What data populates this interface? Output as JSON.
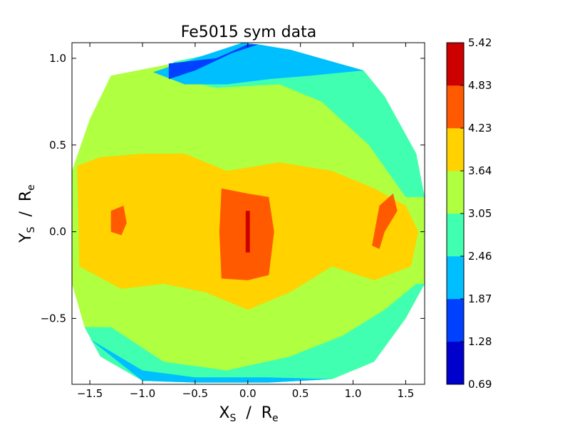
{
  "chart_data": {
    "type": "heatmap",
    "title": "Fe5015 sym data",
    "xlabel": {
      "main": "X",
      "sub": "S",
      "sep": "  /  R",
      "unit_sub": "e"
    },
    "ylabel": {
      "main": "Y",
      "sub": "S",
      "sep": "  /  R",
      "unit_sub": "e"
    },
    "xlim": [
      -1.67,
      1.68
    ],
    "ylim": [
      -0.88,
      1.09
    ],
    "xticks": [
      -1.5,
      -1.0,
      -0.5,
      0.0,
      0.5,
      1.0,
      1.5
    ],
    "xtick_labels": [
      "−1.5",
      "−1.0",
      "−0.5",
      "0.0",
      "0.5",
      "1.0",
      "1.5"
    ],
    "yticks": [
      -0.5,
      0.0,
      0.5,
      1.0
    ],
    "ytick_labels": [
      "−0.5",
      "0.0",
      "0.5",
      "1.0"
    ],
    "colorbar": {
      "levels": [
        0.69,
        1.28,
        1.87,
        2.46,
        3.05,
        3.64,
        4.23,
        4.83,
        5.42
      ],
      "level_labels": [
        "0.69",
        "1.28",
        "1.87",
        "2.46",
        "3.05",
        "3.64",
        "4.23",
        "4.83",
        "5.42"
      ],
      "colors": [
        "#0000cd",
        "#0040ff",
        "#00bfff",
        "#40ffb0",
        "#b0ff40",
        "#ffd200",
        "#ff5a00",
        "#cd0000"
      ]
    },
    "data_region": {
      "boundary_xy": [
        [
          -0.05,
          1.09
        ],
        [
          0.05,
          1.08
        ],
        [
          0.4,
          1.05
        ],
        [
          1.1,
          0.93
        ],
        [
          1.3,
          0.78
        ],
        [
          1.6,
          0.45
        ],
        [
          1.68,
          0.2
        ],
        [
          1.68,
          -0.3
        ],
        [
          1.5,
          -0.5
        ],
        [
          1.2,
          -0.75
        ],
        [
          0.8,
          -0.85
        ],
        [
          0.2,
          -0.87
        ],
        [
          -0.5,
          -0.87
        ],
        [
          -1.0,
          -0.86
        ],
        [
          -1.4,
          -0.72
        ],
        [
          -1.55,
          -0.55
        ],
        [
          -1.67,
          -0.3
        ],
        [
          -1.67,
          0.35
        ],
        [
          -1.5,
          0.65
        ],
        [
          -1.3,
          0.9
        ],
        [
          -0.8,
          0.96
        ],
        [
          -0.3,
          1.03
        ]
      ],
      "fill_level_index": 4
    },
    "regions": [
      {
        "level_index": 3,
        "polygon": [
          [
            -0.05,
            1.09
          ],
          [
            0.4,
            1.05
          ],
          [
            1.1,
            0.93
          ],
          [
            1.3,
            0.78
          ],
          [
            1.6,
            0.45
          ],
          [
            1.68,
            0.2
          ],
          [
            1.5,
            0.2
          ],
          [
            1.15,
            0.5
          ],
          [
            0.7,
            0.75
          ],
          [
            0.3,
            0.85
          ],
          [
            -0.3,
            0.83
          ],
          [
            -0.8,
            0.9
          ],
          [
            -0.7,
            0.98
          ],
          [
            -0.3,
            1.03
          ]
        ]
      },
      {
        "level_index": 3,
        "polygon": [
          [
            1.68,
            -0.3
          ],
          [
            1.5,
            -0.5
          ],
          [
            1.2,
            -0.75
          ],
          [
            0.8,
            -0.85
          ],
          [
            0.2,
            -0.87
          ],
          [
            -0.5,
            -0.87
          ],
          [
            -1.0,
            -0.86
          ],
          [
            -1.4,
            -0.72
          ],
          [
            -1.55,
            -0.55
          ],
          [
            -1.3,
            -0.55
          ],
          [
            -0.8,
            -0.75
          ],
          [
            -0.2,
            -0.8
          ],
          [
            0.4,
            -0.72
          ],
          [
            0.9,
            -0.6
          ],
          [
            1.3,
            -0.45
          ],
          [
            1.6,
            -0.3
          ]
        ]
      },
      {
        "level_index": 2,
        "polygon": [
          [
            -0.05,
            1.09
          ],
          [
            0.1,
            1.08
          ],
          [
            0.4,
            1.05
          ],
          [
            1.1,
            0.93
          ],
          [
            0.6,
            0.9
          ],
          [
            0.2,
            0.88
          ],
          [
            -0.2,
            0.85
          ],
          [
            -0.6,
            0.85
          ],
          [
            -0.9,
            0.92
          ],
          [
            -0.5,
            1.0
          ]
        ]
      },
      {
        "level_index": 2,
        "polygon": [
          [
            -1.5,
            -0.62
          ],
          [
            -1.0,
            -0.86
          ],
          [
            -0.5,
            -0.87
          ],
          [
            0.2,
            -0.87
          ],
          [
            0.8,
            -0.85
          ],
          [
            0.2,
            -0.84
          ],
          [
            -0.5,
            -0.84
          ],
          [
            -1.0,
            -0.8
          ]
        ]
      },
      {
        "level_index": 1,
        "polygon": [
          [
            -0.75,
            0.97
          ],
          [
            -0.3,
            1.0
          ],
          [
            0.0,
            1.08
          ],
          [
            0.1,
            1.08
          ],
          [
            -0.15,
            1.03
          ],
          [
            -0.5,
            0.93
          ],
          [
            -0.75,
            0.88
          ]
        ]
      },
      {
        "level_index": 5,
        "polygon": [
          [
            -1.62,
            0.38
          ],
          [
            -1.4,
            0.43
          ],
          [
            -1.0,
            0.45
          ],
          [
            -0.6,
            0.45
          ],
          [
            -0.2,
            0.35
          ],
          [
            0.3,
            0.4
          ],
          [
            0.8,
            0.35
          ],
          [
            1.2,
            0.25
          ],
          [
            1.5,
            0.15
          ],
          [
            1.62,
            0.0
          ],
          [
            1.55,
            -0.2
          ],
          [
            1.2,
            -0.28
          ],
          [
            0.8,
            -0.2
          ],
          [
            0.4,
            -0.35
          ],
          [
            0.0,
            -0.45
          ],
          [
            -0.4,
            -0.35
          ],
          [
            -0.8,
            -0.3
          ],
          [
            -1.2,
            -0.33
          ],
          [
            -1.6,
            -0.2
          ]
        ]
      },
      {
        "level_index": 6,
        "polygon": [
          [
            -0.25,
            0.25
          ],
          [
            0.0,
            0.22
          ],
          [
            0.2,
            0.2
          ],
          [
            0.25,
            0.0
          ],
          [
            0.2,
            -0.25
          ],
          [
            0.0,
            -0.28
          ],
          [
            -0.25,
            -0.27
          ],
          [
            -0.27,
            0.0
          ]
        ]
      },
      {
        "level_index": 6,
        "polygon": [
          [
            1.25,
            0.15
          ],
          [
            1.38,
            0.22
          ],
          [
            1.42,
            0.12
          ],
          [
            1.3,
            0.0
          ],
          [
            1.25,
            -0.1
          ],
          [
            1.18,
            -0.08
          ]
        ]
      },
      {
        "level_index": 6,
        "polygon": [
          [
            -1.3,
            0.12
          ],
          [
            -1.18,
            0.15
          ],
          [
            -1.15,
            0.05
          ],
          [
            -1.2,
            -0.02
          ],
          [
            -1.3,
            0.0
          ]
        ]
      },
      {
        "level_index": 7,
        "polygon": [
          [
            -0.02,
            0.12
          ],
          [
            0.02,
            0.12
          ],
          [
            0.02,
            -0.12
          ],
          [
            -0.02,
            -0.12
          ]
        ]
      }
    ]
  }
}
